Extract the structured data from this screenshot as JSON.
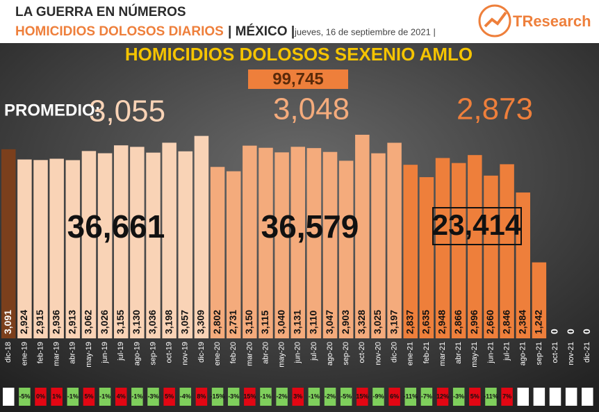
{
  "header": {
    "title": "LA GUERRA EN NÚMEROS",
    "subtitle": "HOMICIDIOS DOLOSOS DIARIOS",
    "country": "| MÉXICO |",
    "date": "jueves, 16 de septiembre de 2021 |",
    "brand": "TResearch"
  },
  "chart_data": {
    "type": "bar",
    "title": "HOMICIDIOS DOLOSOS SEXENIO AMLO",
    "total": "99,745",
    "average_label": "PROMEDIO:",
    "averages": [
      "3,055",
      "3,048",
      "2,873"
    ],
    "period_totals": [
      "36,661",
      "36,579",
      "23,414"
    ],
    "categories": [
      "dic-18",
      "ene-19",
      "feb-19",
      "mar-19",
      "abr-19",
      "may-19",
      "jun-19",
      "jul-19",
      "ago-19",
      "sep-19",
      "oct-19",
      "nov-19",
      "dic-19",
      "ene-20",
      "feb-20",
      "mar-20",
      "abr-20",
      "may-20",
      "jun-20",
      "jul-20",
      "ago-20",
      "sep-20",
      "oct-20",
      "nov-20",
      "dic-20",
      "ene-21",
      "feb-21",
      "mar-21",
      "abr-21",
      "may-21",
      "jun-21",
      "jul-21",
      "ago-21",
      "sep-21",
      "oct-21",
      "nov-21",
      "dic-21"
    ],
    "values": [
      3091,
      2924,
      2915,
      2936,
      2913,
      3062,
      3026,
      3155,
      3130,
      3036,
      3198,
      3057,
      3309,
      2802,
      2731,
      3150,
      3115,
      3040,
      3131,
      3110,
      3047,
      2903,
      3328,
      3025,
      3197,
      2837,
      2635,
      2948,
      2866,
      2996,
      2660,
      2846,
      2384,
      1242,
      0,
      0,
      0
    ],
    "value_labels": [
      "3,091",
      "2,924",
      "2,915",
      "2,936",
      "2,913",
      "3,062",
      "3,026",
      "3,155",
      "3,130",
      "3,036",
      "3,198",
      "3,057",
      "3,309",
      "2,802",
      "2,731",
      "3,150",
      "3,115",
      "3,040",
      "3,131",
      "3,110",
      "3,047",
      "2,903",
      "3,328",
      "3,025",
      "3,197",
      "2,837",
      "2,635",
      "2,948",
      "2,866",
      "2,996",
      "2,660",
      "2,846",
      "2,384",
      "1,242",
      "0",
      "0",
      "0"
    ],
    "colors": [
      "#7b3f1c",
      "#f9d3b6",
      "#f9d3b6",
      "#f9d3b6",
      "#f9d3b6",
      "#f9d3b6",
      "#f9d3b6",
      "#f9d3b6",
      "#f9d3b6",
      "#f9d3b6",
      "#f9d3b6",
      "#f9d3b6",
      "#f9d3b6",
      "#f4ab7c",
      "#f4ab7c",
      "#f4ab7c",
      "#f4ab7c",
      "#f4ab7c",
      "#f4ab7c",
      "#f4ab7c",
      "#f4ab7c",
      "#f4ab7c",
      "#f4ab7c",
      "#f4ab7c",
      "#f4ab7c",
      "#ee7f3b",
      "#ee7f3b",
      "#ee7f3b",
      "#ee7f3b",
      "#ee7f3b",
      "#ee7f3b",
      "#ee7f3b",
      "#ee7f3b",
      "#ee7f3b",
      "#ee7f3b",
      "#ee7f3b",
      "#ee7f3b"
    ],
    "ylim": [
      0,
      3600
    ],
    "changes": [
      null,
      -5,
      0,
      1,
      -1,
      5,
      -1,
      4,
      -1,
      -3,
      5,
      -4,
      8,
      -15,
      -3,
      15,
      -1,
      -2,
      3,
      -1,
      -2,
      -5,
      15,
      -9,
      6,
      -11,
      -7,
      12,
      -3,
      5,
      -11,
      7,
      null,
      null,
      null,
      null,
      null
    ],
    "change_labels": [
      null,
      "-5%",
      "0%",
      "1%",
      "-1%",
      "5%",
      "-1%",
      "4%",
      "-1%",
      "-3%",
      "5%",
      "-4%",
      "8%",
      "-15%",
      "-3%",
      "15%",
      "-1%",
      "-2%",
      "3%",
      "-1%",
      "-2%",
      "-5%",
      "15%",
      "-9%",
      "6%",
      "-11%",
      "-7%",
      "12%",
      "-3%",
      "5%",
      "-11%",
      "7%",
      null,
      null,
      null,
      null,
      null
    ]
  }
}
